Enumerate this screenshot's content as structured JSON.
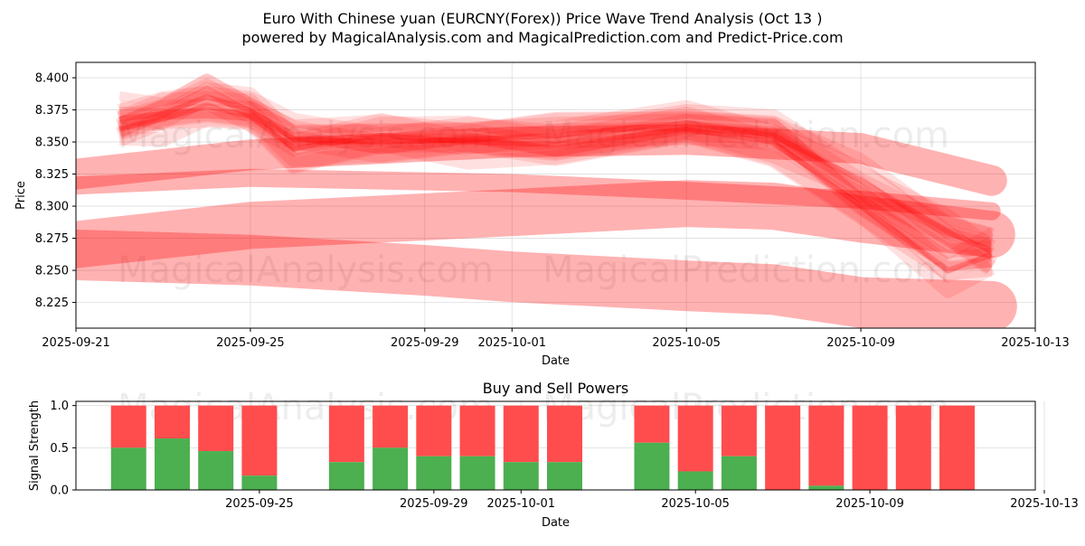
{
  "title_line1": "Euro With Chinese yuan (EURCNY(Forex)) Price Wave Trend Analysis (Oct 13 )",
  "title_line2": "powered by MagicalAnalysis.com and MagicalPrediction.com and Predict-Price.com",
  "watermarks": [
    "MagicalAnalysis.com",
    "MagicalPrediction.com"
  ],
  "colors": {
    "wave": "#ff0000",
    "buy": "#4caf50",
    "sell": "#ff4d4d",
    "axis": "#000000",
    "grid": "#dddddd"
  },
  "chart_data": [
    {
      "type": "line",
      "title": "",
      "xlabel": "Date",
      "ylabel": "Price",
      "xlim": [
        "2025-09-21",
        "2025-10-13"
      ],
      "ylim": [
        8.205,
        8.412
      ],
      "grid": true,
      "x_ticks": [
        "2025-09-21",
        "2025-09-25",
        "2025-09-29",
        "2025-10-01",
        "2025-10-05",
        "2025-10-09",
        "2025-10-13"
      ],
      "y_ticks": [
        "8.225",
        "8.250",
        "8.275",
        "8.300",
        "8.325",
        "8.350",
        "8.375",
        "8.400"
      ],
      "series": [
        {
          "name": "wave-upper",
          "x": [
            "2025-09-22",
            "2025-09-23",
            "2025-09-24",
            "2025-09-25",
            "2025-09-26",
            "2025-09-28",
            "2025-09-30",
            "2025-10-02",
            "2025-10-05",
            "2025-10-07",
            "2025-10-09",
            "2025-10-11",
            "2025-10-12"
          ],
          "values": [
            8.368,
            8.372,
            8.385,
            8.375,
            8.352,
            8.35,
            8.352,
            8.355,
            8.365,
            8.355,
            8.32,
            8.28,
            8.265
          ]
        },
        {
          "name": "wave-mid",
          "x": [
            "2025-09-22",
            "2025-09-23",
            "2025-09-24",
            "2025-09-25",
            "2025-09-26",
            "2025-09-28",
            "2025-09-30",
            "2025-10-02",
            "2025-10-05",
            "2025-10-07",
            "2025-10-09",
            "2025-10-11",
            "2025-10-12"
          ],
          "values": [
            8.36,
            8.368,
            8.378,
            8.37,
            8.345,
            8.355,
            8.35,
            8.348,
            8.36,
            8.35,
            8.3,
            8.25,
            8.262
          ]
        },
        {
          "name": "band-1",
          "x": [
            "2025-09-21",
            "2025-09-25",
            "2025-10-01",
            "2025-10-05",
            "2025-10-09",
            "2025-10-12"
          ],
          "values": [
            8.325,
            8.34,
            8.35,
            8.352,
            8.345,
            8.32
          ],
          "width": 34
        },
        {
          "name": "band-2",
          "x": [
            "2025-09-21",
            "2025-09-25",
            "2025-10-01",
            "2025-10-05",
            "2025-10-09",
            "2025-10-12"
          ],
          "values": [
            8.316,
            8.322,
            8.318,
            8.312,
            8.305,
            8.296
          ],
          "width": 20
        },
        {
          "name": "band-3",
          "x": [
            "2025-09-21",
            "2025-09-25",
            "2025-10-01",
            "2025-10-05",
            "2025-10-07",
            "2025-10-09",
            "2025-10-12"
          ],
          "values": [
            8.27,
            8.285,
            8.295,
            8.302,
            8.3,
            8.29,
            8.278
          ],
          "width": 52
        },
        {
          "name": "band-4",
          "x": [
            "2025-09-21",
            "2025-09-25",
            "2025-09-29",
            "2025-10-01",
            "2025-10-05",
            "2025-10-07",
            "2025-10-09",
            "2025-10-12"
          ],
          "values": [
            8.262,
            8.258,
            8.25,
            8.245,
            8.238,
            8.235,
            8.225,
            8.222
          ],
          "width": 56
        }
      ]
    },
    {
      "type": "bar",
      "title": "Buy and Sell Powers",
      "xlabel": "Date",
      "ylabel": "Signal Strength",
      "xlim": [
        "2025-09-21",
        "2025-10-13"
      ],
      "ylim": [
        0,
        1.05
      ],
      "grid": true,
      "x_ticks": [
        "2025-09-25",
        "2025-09-29",
        "2025-10-01",
        "2025-10-05",
        "2025-10-09",
        "2025-10-13"
      ],
      "y_ticks": [
        "0.0",
        "0.5",
        "1.0"
      ],
      "categories": [
        "2025-09-22",
        "2025-09-23",
        "2025-09-24",
        "2025-09-25",
        "2025-09-27",
        "2025-09-28",
        "2025-09-29",
        "2025-09-30",
        "2025-10-01",
        "2025-10-02",
        "2025-10-04",
        "2025-10-05",
        "2025-10-06",
        "2025-10-07",
        "2025-10-08",
        "2025-10-09",
        "2025-10-10",
        "2025-10-11"
      ],
      "series": [
        {
          "name": "Buy",
          "values": [
            0.5,
            0.61,
            0.46,
            0.17,
            0.33,
            0.5,
            0.4,
            0.4,
            0.33,
            0.33,
            0.56,
            0.22,
            0.4,
            0.0,
            0.05,
            0.0,
            0.0,
            0.0
          ]
        },
        {
          "name": "Sell",
          "values": [
            0.5,
            0.39,
            0.54,
            0.83,
            0.67,
            0.5,
            0.6,
            0.6,
            0.67,
            0.67,
            0.44,
            0.78,
            0.6,
            1.0,
            0.95,
            1.0,
            1.0,
            1.0
          ]
        }
      ]
    }
  ]
}
